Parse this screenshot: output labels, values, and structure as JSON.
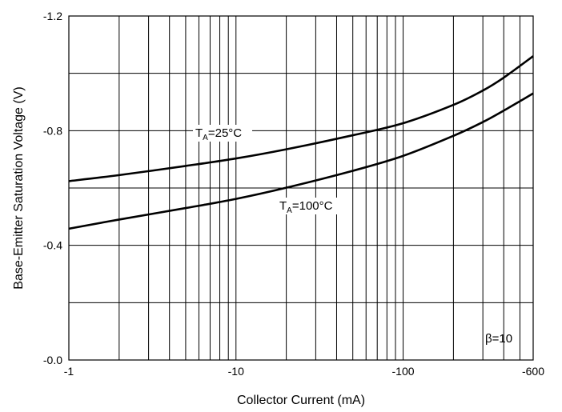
{
  "chart_data": {
    "type": "line",
    "xscale": "log",
    "title": "",
    "xlabel": "Collector Current (mA)",
    "ylabel": "Base-Emitter Saturation Voltage (V)",
    "xlim": [
      -1,
      -600
    ],
    "ylim": [
      -0.0,
      -1.2
    ],
    "grid": true,
    "x_tick_labels": [
      {
        "x": -1,
        "label": "-1"
      },
      {
        "x": -10,
        "label": "-10"
      },
      {
        "x": -100,
        "label": "-100"
      },
      {
        "x": -600,
        "label": "-600"
      }
    ],
    "y_tick_labels": [
      {
        "y": 0,
        "label": "-0.0"
      },
      {
        "y": -0.4,
        "label": "-0.4"
      },
      {
        "y": -0.8,
        "label": "-0.8"
      },
      {
        "y": -1.2,
        "label": "-1.2"
      }
    ],
    "y_gridlines": [
      0,
      -0.2,
      -0.4,
      -0.6,
      -0.8,
      -1.0,
      -1.2
    ],
    "series": [
      {
        "name": "TA=25°C",
        "label_main": "T",
        "label_sub": "A",
        "label_rest": "=25°C",
        "x": [
          -1,
          -2,
          -5,
          -10,
          -20,
          -50,
          -100,
          -200,
          -300,
          -400,
          -600
        ],
        "y": [
          -0.624,
          -0.645,
          -0.677,
          -0.703,
          -0.735,
          -0.784,
          -0.826,
          -0.89,
          -0.94,
          -0.985,
          -1.06
        ]
      },
      {
        "name": "TA=100°C",
        "label_main": "T",
        "label_sub": "A",
        "label_rest": "=100°C",
        "x": [
          -1,
          -2,
          -5,
          -10,
          -20,
          -50,
          -100,
          -200,
          -300,
          -400,
          -600
        ],
        "y": [
          -0.458,
          -0.49,
          -0.53,
          -0.562,
          -0.601,
          -0.66,
          -0.712,
          -0.782,
          -0.83,
          -0.87,
          -0.93
        ]
      }
    ],
    "annotation": "β=10"
  }
}
